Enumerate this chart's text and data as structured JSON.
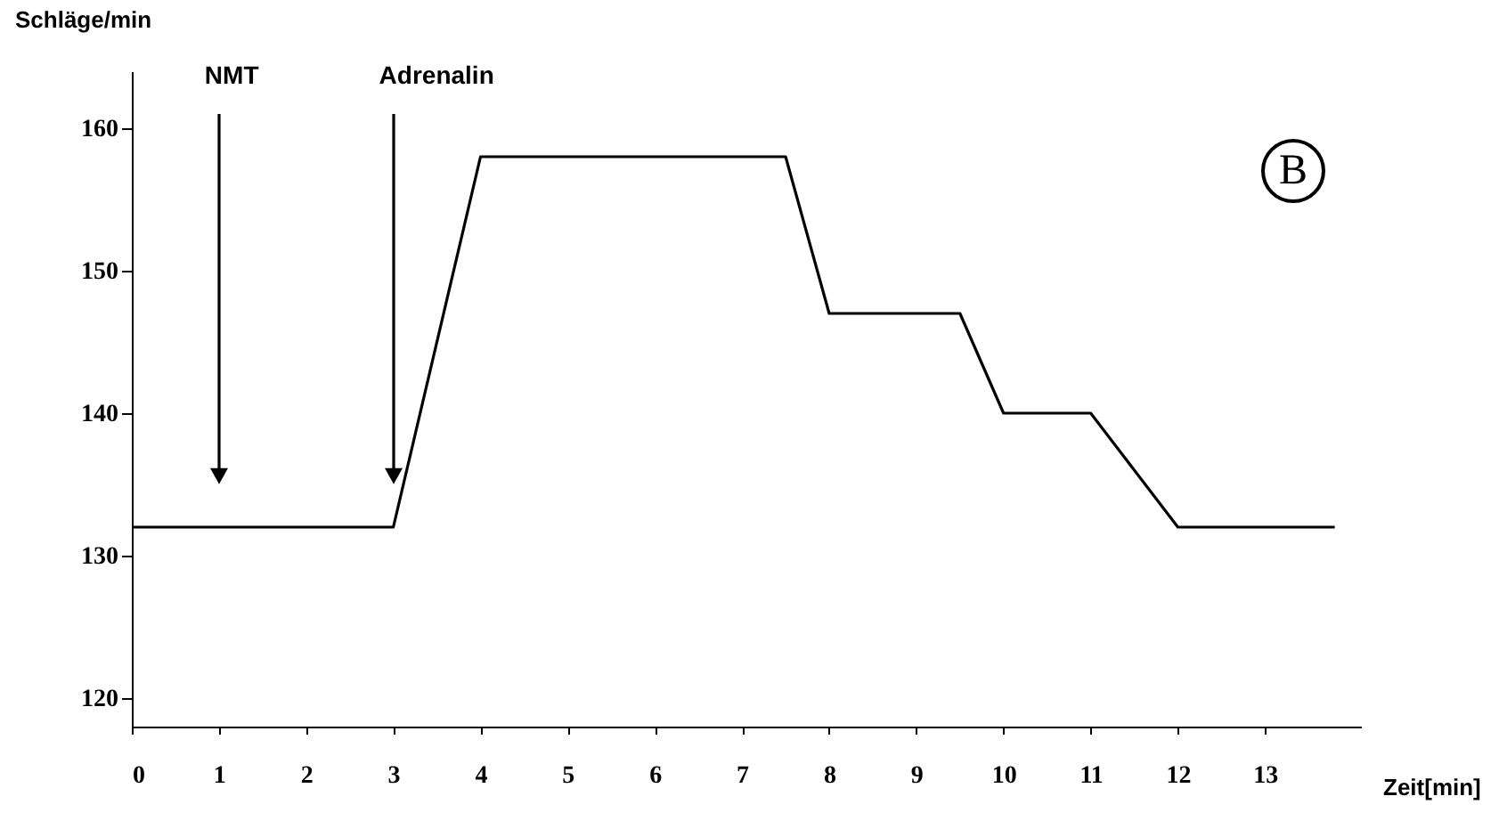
{
  "chart_data": {
    "type": "line",
    "xlabel": "Zeit[min]",
    "ylabel": "Schläge/min",
    "x": [
      0,
      3,
      4,
      7.5,
      8,
      9.5,
      10,
      11,
      12,
      13.8
    ],
    "series": [
      {
        "color": "#000000",
        "values": [
          132,
          132,
          158,
          158,
          147,
          147,
          140,
          140,
          132,
          132
        ]
      }
    ],
    "xlim": [
      0,
      14.1
    ],
    "xticks": [
      0,
      1,
      2,
      3,
      4,
      5,
      6,
      7,
      8,
      9,
      10,
      11,
      12,
      13
    ],
    "ylim": [
      118,
      164
    ],
    "yticks": [
      120,
      130,
      140,
      150,
      160
    ],
    "ref_lines": [
      {
        "axis": "x",
        "value": 1,
        "label": "NMT"
      },
      {
        "axis": "x",
        "value": 3,
        "label": "Adrenalin"
      }
    ],
    "annotations": [
      "B"
    ]
  }
}
